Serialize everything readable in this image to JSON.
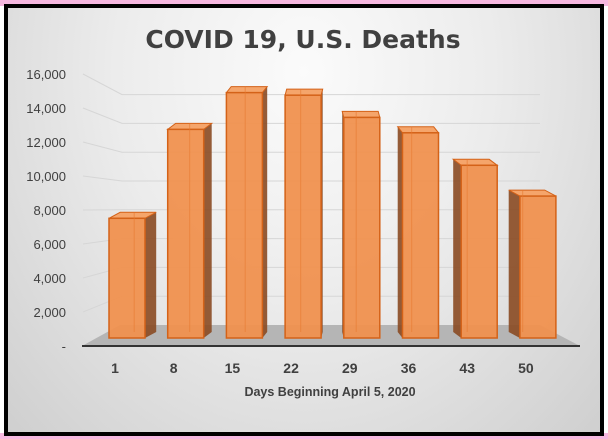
{
  "chart_data": {
    "type": "bar",
    "title": "COVID 19, U.S. Deaths",
    "xlabel": "Days Beginning April 5, 2020",
    "ylabel": "",
    "categories": [
      "1",
      "8",
      "15",
      "22",
      "29",
      "36",
      "43",
      "50"
    ],
    "values": [
      7000,
      12200,
      14350,
      14200,
      12900,
      12000,
      10100,
      8300
    ],
    "ylim": [
      0,
      16000
    ],
    "yticks": [
      "-",
      "2,000",
      "4,000",
      "6,000",
      "8,000",
      "10,000",
      "12,000",
      "14,000",
      "16,000"
    ],
    "grid": true,
    "legend": "none",
    "style": "3d-column"
  },
  "colors": {
    "bar": "#f0914f",
    "bar_edge": "#d46218",
    "bar_side": "#8a4a22",
    "floor": "#b5b5b5"
  }
}
